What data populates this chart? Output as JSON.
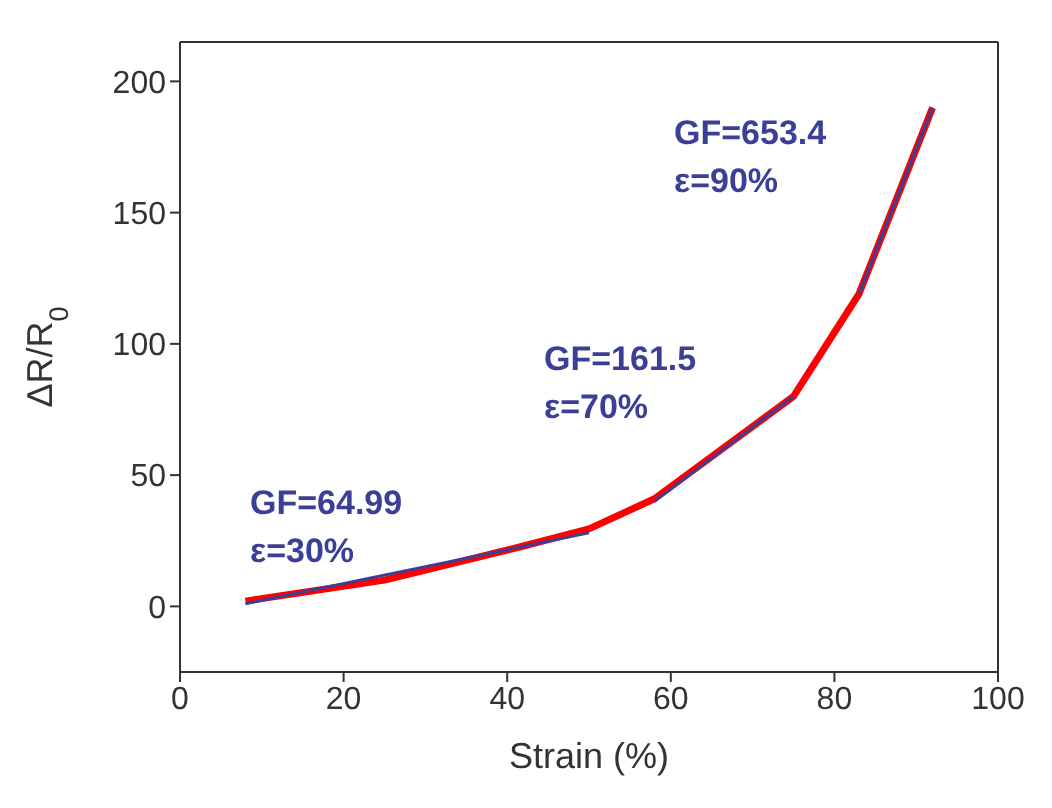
{
  "chart_data": {
    "type": "line",
    "xlabel": "Strain (%)",
    "ylabel": "ΔR/R$_{0}$",
    "xlim": [
      0,
      100
    ],
    "xticks": [
      0,
      20,
      40,
      60,
      80,
      100
    ],
    "ylim": [
      -25,
      215
    ],
    "yticks": [
      0,
      50,
      100,
      150,
      200
    ],
    "marker": "none",
    "line_style": "solid",
    "series": [
      {
        "color": "#ff0000",
        "x": [
          8,
          25,
          42,
          50,
          58,
          75,
          83,
          92
        ],
        "values": [
          2,
          10,
          23,
          29.5,
          41,
          80,
          119,
          190
        ]
      },
      {
        "color": "#3b3f96",
        "x": [
          8,
          50
        ],
        "values": [
          1,
          28
        ]
      },
      {
        "color": "#3b3f96",
        "x": [
          58,
          75
        ],
        "values": [
          40,
          80
        ]
      },
      {
        "color": "#3b3f96",
        "x": [
          83,
          92
        ],
        "values": [
          119,
          190
        ]
      }
    ],
    "annotations": [
      "GF=64.99\nε=30%",
      "GF=161.5\nε=70%",
      "GF=653.4\nε=90%"
    ]
  }
}
